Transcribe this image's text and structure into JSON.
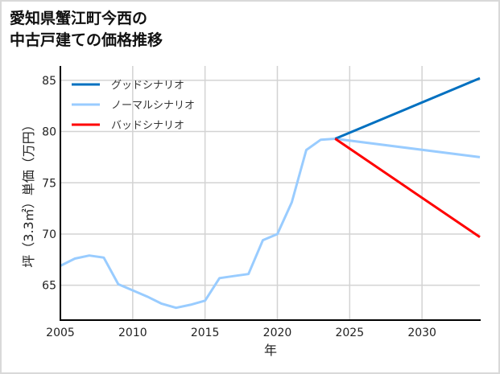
{
  "title": "愛知県蟹江町今西の\n中古戸建ての価格推移",
  "chart_data": {
    "type": "line",
    "title": "愛知県蟹江町今西の中古戸建ての価格推移",
    "xlabel": "年",
    "ylabel": "坪（3.3㎡）単価（万円）",
    "xlim": [
      2005,
      2034
    ],
    "ylim": [
      61.6,
      86.4
    ],
    "x_ticks": [
      "2005",
      "2010",
      "2015",
      "2020",
      "2025",
      "2030"
    ],
    "y_ticks": [
      "65",
      "70",
      "75",
      "80",
      "85"
    ],
    "grid": true,
    "legend_position": "upper left",
    "series": [
      {
        "name": "グッドシナリオ",
        "color": "#0070c0",
        "x": [
          2024,
          2034
        ],
        "values": [
          79.3,
          85.2
        ]
      },
      {
        "name": "ノーマルシナリオ",
        "color": "#99ccff",
        "x": [
          2005,
          2006,
          2007,
          2008,
          2009,
          2010,
          2011,
          2012,
          2013,
          2014,
          2015,
          2016,
          2017,
          2018,
          2019,
          2020,
          2021,
          2022,
          2023,
          2024,
          2034
        ],
        "values": [
          66.9,
          67.6,
          67.9,
          67.7,
          65.1,
          64.5,
          63.9,
          63.2,
          62.8,
          63.1,
          63.5,
          65.7,
          65.9,
          66.1,
          69.4,
          70.0,
          73.1,
          78.2,
          79.2,
          79.3,
          77.5
        ]
      },
      {
        "name": "バッドシナリオ",
        "color": "#ff0000",
        "x": [
          2024,
          2034
        ],
        "values": [
          79.3,
          69.7
        ]
      }
    ]
  }
}
